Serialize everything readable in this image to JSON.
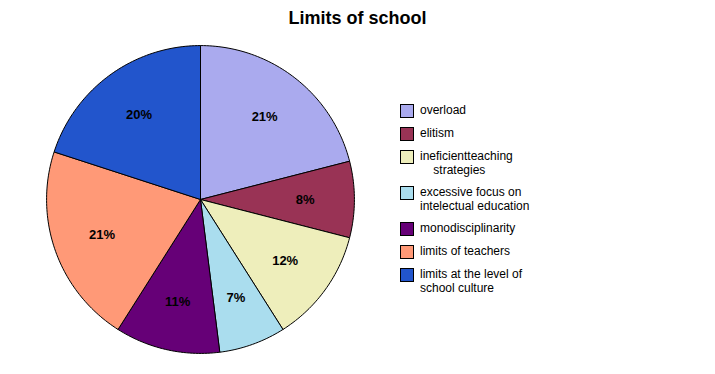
{
  "chart_data": {
    "type": "pie",
    "title": "Limits of school",
    "categories": [
      "overload",
      "elitism",
      "ineficientteaching\n    strategies",
      "excessive focus on\nintelectual education",
      "monodisciplinarity",
      "limits of teachers",
      "limits at the level of\nschool culture"
    ],
    "values": [
      21,
      8,
      12,
      7,
      11,
      21,
      20
    ],
    "value_labels": [
      "21%",
      "8%",
      "12%",
      "7%",
      "11%",
      "21%",
      "20%"
    ],
    "colors": [
      "#aaaaee",
      "#993355",
      "#eeeebb",
      "#aaddee",
      "#660077",
      "#ff9977",
      "#2255cc"
    ],
    "data_labels": true,
    "legend": "right"
  }
}
